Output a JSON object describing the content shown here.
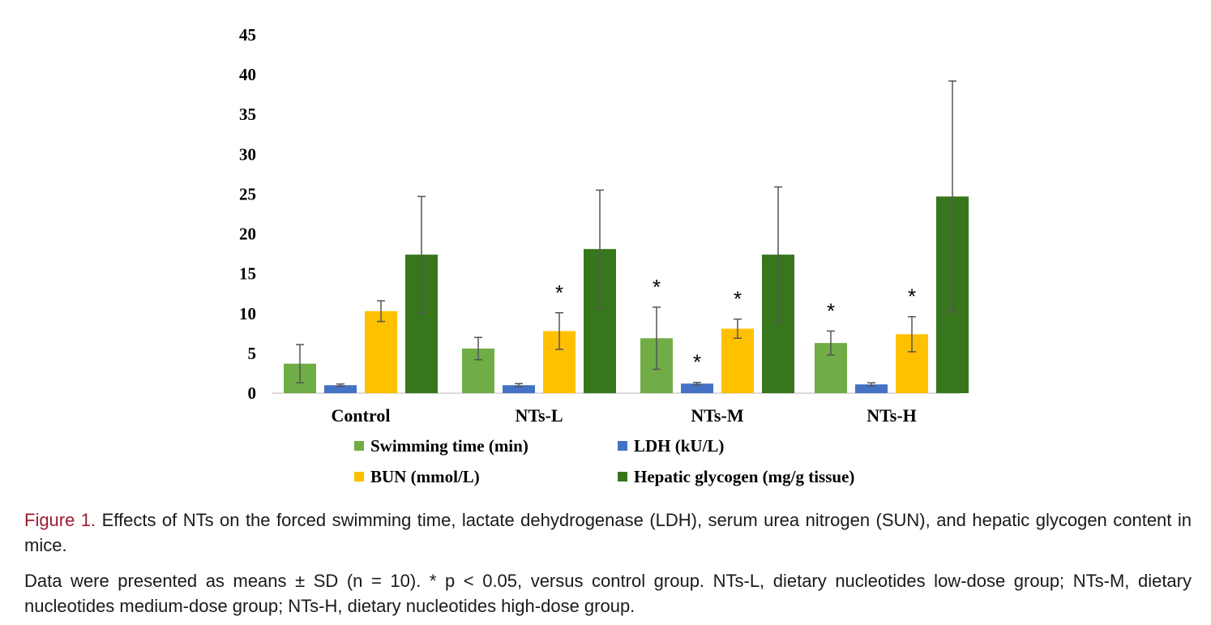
{
  "chart_data": {
    "type": "bar",
    "categories": [
      "Control",
      "NTs-L",
      "NTs-M",
      "NTs-H"
    ],
    "ylim": [
      0,
      45
    ],
    "yticks": [
      0,
      5,
      10,
      15,
      20,
      25,
      30,
      35,
      40,
      45
    ],
    "ytick_labels": [
      "0",
      "5",
      "10",
      "15",
      "20",
      "25",
      "30",
      "35",
      "40",
      "45"
    ],
    "series": [
      {
        "name": "Swimming time (min)",
        "color": "#70ad47",
        "values": [
          3.7,
          5.6,
          6.9,
          6.3
        ],
        "sd": [
          2.4,
          1.4,
          3.9,
          1.5
        ],
        "significant": [
          false,
          false,
          true,
          true
        ]
      },
      {
        "name": "LDH (kU/L)",
        "color": "#4472c4",
        "values": [
          1.0,
          1.0,
          1.2,
          1.1
        ],
        "sd": [
          0.15,
          0.2,
          0.15,
          0.2
        ],
        "significant": [
          false,
          false,
          true,
          false
        ]
      },
      {
        "name": "BUN (mmol/L)",
        "color": "#ffc000",
        "values": [
          10.3,
          7.8,
          8.1,
          7.4
        ],
        "sd": [
          1.3,
          2.3,
          1.2,
          2.2
        ],
        "significant": [
          false,
          true,
          true,
          true
        ]
      },
      {
        "name": "Hepatic glycogen (mg/g tissue)",
        "color": "#38761d",
        "values": [
          17.4,
          18.1,
          17.4,
          24.7
        ],
        "sd": [
          7.3,
          7.4,
          8.5,
          14.5
        ],
        "significant": [
          false,
          false,
          false,
          false
        ]
      }
    ],
    "significance_marker": "*",
    "xlabel": "",
    "ylabel": "",
    "title": ""
  },
  "caption": {
    "label": "Figure 1.",
    "text": "Effects of NTs on the forced swimming time, lactate dehydrogenase (LDH), serum urea nitrogen (SUN), and hepatic glycogen content in mice.",
    "note": "Data were presented as means ± SD (n = 10). * p < 0.05, versus control group. NTs-L, dietary nucleotides low-dose group; NTs-M, dietary nucleotides medium-dose group; NTs-H, dietary nucleotides high-dose group."
  }
}
